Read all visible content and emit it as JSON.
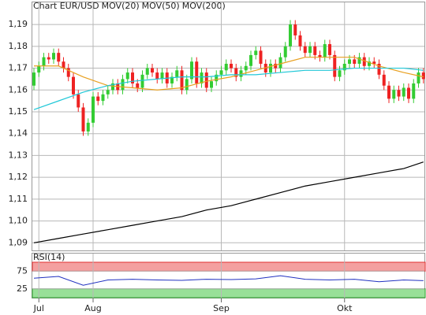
{
  "chart_data": {
    "type": "candlestick",
    "title": "Chart EUR/USD",
    "title_color": "#c03030",
    "up_color": "#33cc33",
    "down_color": "#ee2222",
    "categories": [
      null,
      "Jul",
      null,
      null,
      null,
      null,
      null,
      null,
      null,
      null,
      null,
      null,
      "Aug",
      null,
      null,
      null,
      null,
      null,
      null,
      null,
      null,
      null,
      null,
      null,
      null,
      null,
      null,
      null,
      null,
      null,
      null,
      null,
      null,
      null,
      null,
      null,
      null,
      null,
      "Sep",
      null,
      null,
      null,
      null,
      null,
      null,
      null,
      null,
      null,
      null,
      null,
      null,
      null,
      null,
      null,
      null,
      null,
      null,
      null,
      null,
      null,
      null,
      null,
      null,
      "Okt",
      null,
      null,
      null,
      null,
      null,
      null,
      null,
      null,
      null,
      null,
      null,
      null,
      null,
      null,
      null,
      null
    ],
    "open": [
      1.162,
      1.168,
      1.171,
      1.175,
      1.174,
      1.177,
      1.173,
      1.17,
      1.166,
      1.158,
      1.152,
      1.141,
      1.145,
      1.157,
      1.155,
      1.158,
      1.16,
      1.163,
      1.16,
      1.165,
      1.168,
      1.163,
      1.161,
      1.167,
      1.17,
      1.168,
      1.165,
      1.168,
      1.163,
      1.166,
      1.169,
      1.16,
      1.165,
      1.173,
      1.163,
      1.168,
      1.161,
      1.164,
      1.167,
      1.169,
      1.172,
      1.17,
      1.166,
      1.169,
      1.171,
      1.176,
      1.178,
      1.172,
      1.168,
      1.172,
      1.17,
      1.175,
      1.18,
      1.19,
      1.185,
      1.18,
      1.177,
      1.18,
      1.176,
      1.175,
      1.181,
      1.176,
      1.166,
      1.169,
      1.172,
      1.174,
      1.172,
      1.175,
      1.171,
      1.173,
      1.172,
      1.167,
      1.162,
      1.156,
      1.16,
      1.157,
      1.161,
      1.156,
      1.163,
      1.168
    ],
    "high": [
      1.17,
      1.173,
      1.177,
      1.177,
      1.179,
      1.179,
      1.175,
      1.172,
      1.168,
      1.16,
      1.154,
      1.147,
      1.159,
      1.159,
      1.16,
      1.162,
      1.165,
      1.165,
      1.167,
      1.17,
      1.17,
      1.165,
      1.169,
      1.172,
      1.172,
      1.17,
      1.17,
      1.17,
      1.168,
      1.171,
      1.171,
      1.167,
      1.175,
      1.175,
      1.17,
      1.17,
      1.166,
      1.169,
      1.171,
      1.174,
      1.174,
      1.172,
      1.171,
      1.173,
      1.178,
      1.18,
      1.18,
      1.174,
      1.174,
      1.174,
      1.177,
      1.182,
      1.192,
      1.192,
      1.187,
      1.182,
      1.182,
      1.182,
      1.178,
      1.183,
      1.183,
      1.178,
      1.171,
      1.174,
      1.176,
      1.176,
      1.177,
      1.177,
      1.175,
      1.175,
      1.174,
      1.169,
      1.164,
      1.162,
      1.162,
      1.163,
      1.163,
      1.165,
      1.17,
      1.17
    ],
    "low": [
      1.16,
      1.166,
      1.169,
      1.172,
      1.172,
      1.171,
      1.168,
      1.164,
      1.156,
      1.15,
      1.139,
      1.139,
      1.143,
      1.153,
      1.153,
      1.156,
      1.158,
      1.158,
      1.158,
      1.163,
      1.161,
      1.159,
      1.159,
      1.165,
      1.166,
      1.163,
      1.163,
      1.161,
      1.161,
      1.164,
      1.158,
      1.158,
      1.163,
      1.161,
      1.161,
      1.159,
      1.159,
      1.162,
      1.165,
      1.167,
      1.168,
      1.164,
      1.164,
      1.167,
      1.169,
      1.174,
      1.17,
      1.166,
      1.166,
      1.168,
      1.168,
      1.173,
      1.178,
      1.183,
      1.178,
      1.175,
      1.175,
      1.174,
      1.173,
      1.173,
      1.174,
      1.164,
      1.164,
      1.167,
      1.17,
      1.17,
      1.17,
      1.169,
      1.169,
      1.17,
      1.165,
      1.16,
      1.154,
      1.154,
      1.155,
      1.155,
      1.154,
      1.154,
      1.161,
      1.163
    ],
    "close": [
      1.168,
      1.171,
      1.175,
      1.174,
      1.177,
      1.173,
      1.17,
      1.166,
      1.158,
      1.152,
      1.141,
      1.145,
      1.157,
      1.155,
      1.158,
      1.16,
      1.163,
      1.16,
      1.165,
      1.168,
      1.163,
      1.161,
      1.167,
      1.17,
      1.168,
      1.165,
      1.168,
      1.163,
      1.166,
      1.169,
      1.16,
      1.165,
      1.173,
      1.163,
      1.168,
      1.161,
      1.164,
      1.167,
      1.169,
      1.172,
      1.17,
      1.166,
      1.169,
      1.171,
      1.176,
      1.178,
      1.172,
      1.168,
      1.172,
      1.17,
      1.175,
      1.18,
      1.19,
      1.185,
      1.18,
      1.177,
      1.18,
      1.176,
      1.175,
      1.181,
      1.176,
      1.166,
      1.169,
      1.172,
      1.174,
      1.172,
      1.175,
      1.171,
      1.173,
      1.172,
      1.167,
      1.162,
      1.156,
      1.16,
      1.157,
      1.161,
      1.156,
      1.163,
      1.168,
      1.165
    ],
    "series": [
      {
        "name": "MOV(20)",
        "color": "#e8a020",
        "x": [
          0,
          5,
          10,
          15,
          20,
          25,
          30,
          35,
          40,
          45,
          50,
          55,
          60,
          65,
          70,
          75,
          79
        ],
        "values": [
          1.171,
          1.171,
          1.166,
          1.162,
          1.161,
          1.16,
          1.161,
          1.164,
          1.166,
          1.169,
          1.172,
          1.175,
          1.175,
          1.175,
          1.171,
          1.168,
          1.166
        ]
      },
      {
        "name": "MOV(50)",
        "color": "#20c8d8",
        "x": [
          0,
          5,
          10,
          15,
          20,
          25,
          30,
          35,
          40,
          45,
          50,
          55,
          60,
          65,
          70,
          75,
          79
        ],
        "values": [
          1.151,
          1.155,
          1.159,
          1.162,
          1.164,
          1.165,
          1.166,
          1.166,
          1.167,
          1.167,
          1.168,
          1.169,
          1.169,
          1.17,
          1.17,
          1.17,
          1.169
        ]
      },
      {
        "name": "MOV(200)",
        "color": "#000000",
        "x": [
          0,
          5,
          10,
          15,
          20,
          25,
          30,
          35,
          40,
          45,
          50,
          55,
          60,
          65,
          70,
          75,
          79
        ],
        "values": [
          1.09,
          1.092,
          1.094,
          1.096,
          1.098,
          1.1,
          1.102,
          1.105,
          1.107,
          1.11,
          1.113,
          1.116,
          1.118,
          1.12,
          1.122,
          1.124,
          1.127
        ]
      }
    ],
    "ylim": [
      1.0865,
      1.2005
    ],
    "yticks": [
      {
        "value": 1.09,
        "label": "1,09"
      },
      {
        "value": 1.1,
        "label": "1,10"
      },
      {
        "value": 1.11,
        "label": "1,11"
      },
      {
        "value": 1.12,
        "label": "1,12"
      },
      {
        "value": 1.13,
        "label": "1,13"
      },
      {
        "value": 1.14,
        "label": "1,14"
      },
      {
        "value": 1.15,
        "label": "1,15"
      },
      {
        "value": 1.16,
        "label": "1,16"
      },
      {
        "value": 1.17,
        "label": "1,17"
      },
      {
        "value": 1.18,
        "label": "1,18"
      },
      {
        "value": 1.19,
        "label": "1,19"
      }
    ],
    "grid": true,
    "rsi": {
      "name": "RSI(14)",
      "color": "#2030c0",
      "x": [
        0,
        5,
        10,
        15,
        20,
        25,
        30,
        35,
        40,
        45,
        50,
        55,
        60,
        65,
        70,
        75,
        79
      ],
      "values": [
        55,
        60,
        35,
        50,
        52,
        50,
        49,
        52,
        51,
        53,
        62,
        52,
        50,
        52,
        45,
        50,
        48
      ],
      "ylim": [
        0,
        100
      ],
      "yticks": [
        25,
        75
      ],
      "bands": [
        {
          "from": 75,
          "to": 100,
          "color": "#f4a0a0",
          "edge": "#e03030"
        },
        {
          "from": 0,
          "to": 25,
          "color": "#98e098",
          "edge": "#30a030"
        }
      ]
    }
  }
}
